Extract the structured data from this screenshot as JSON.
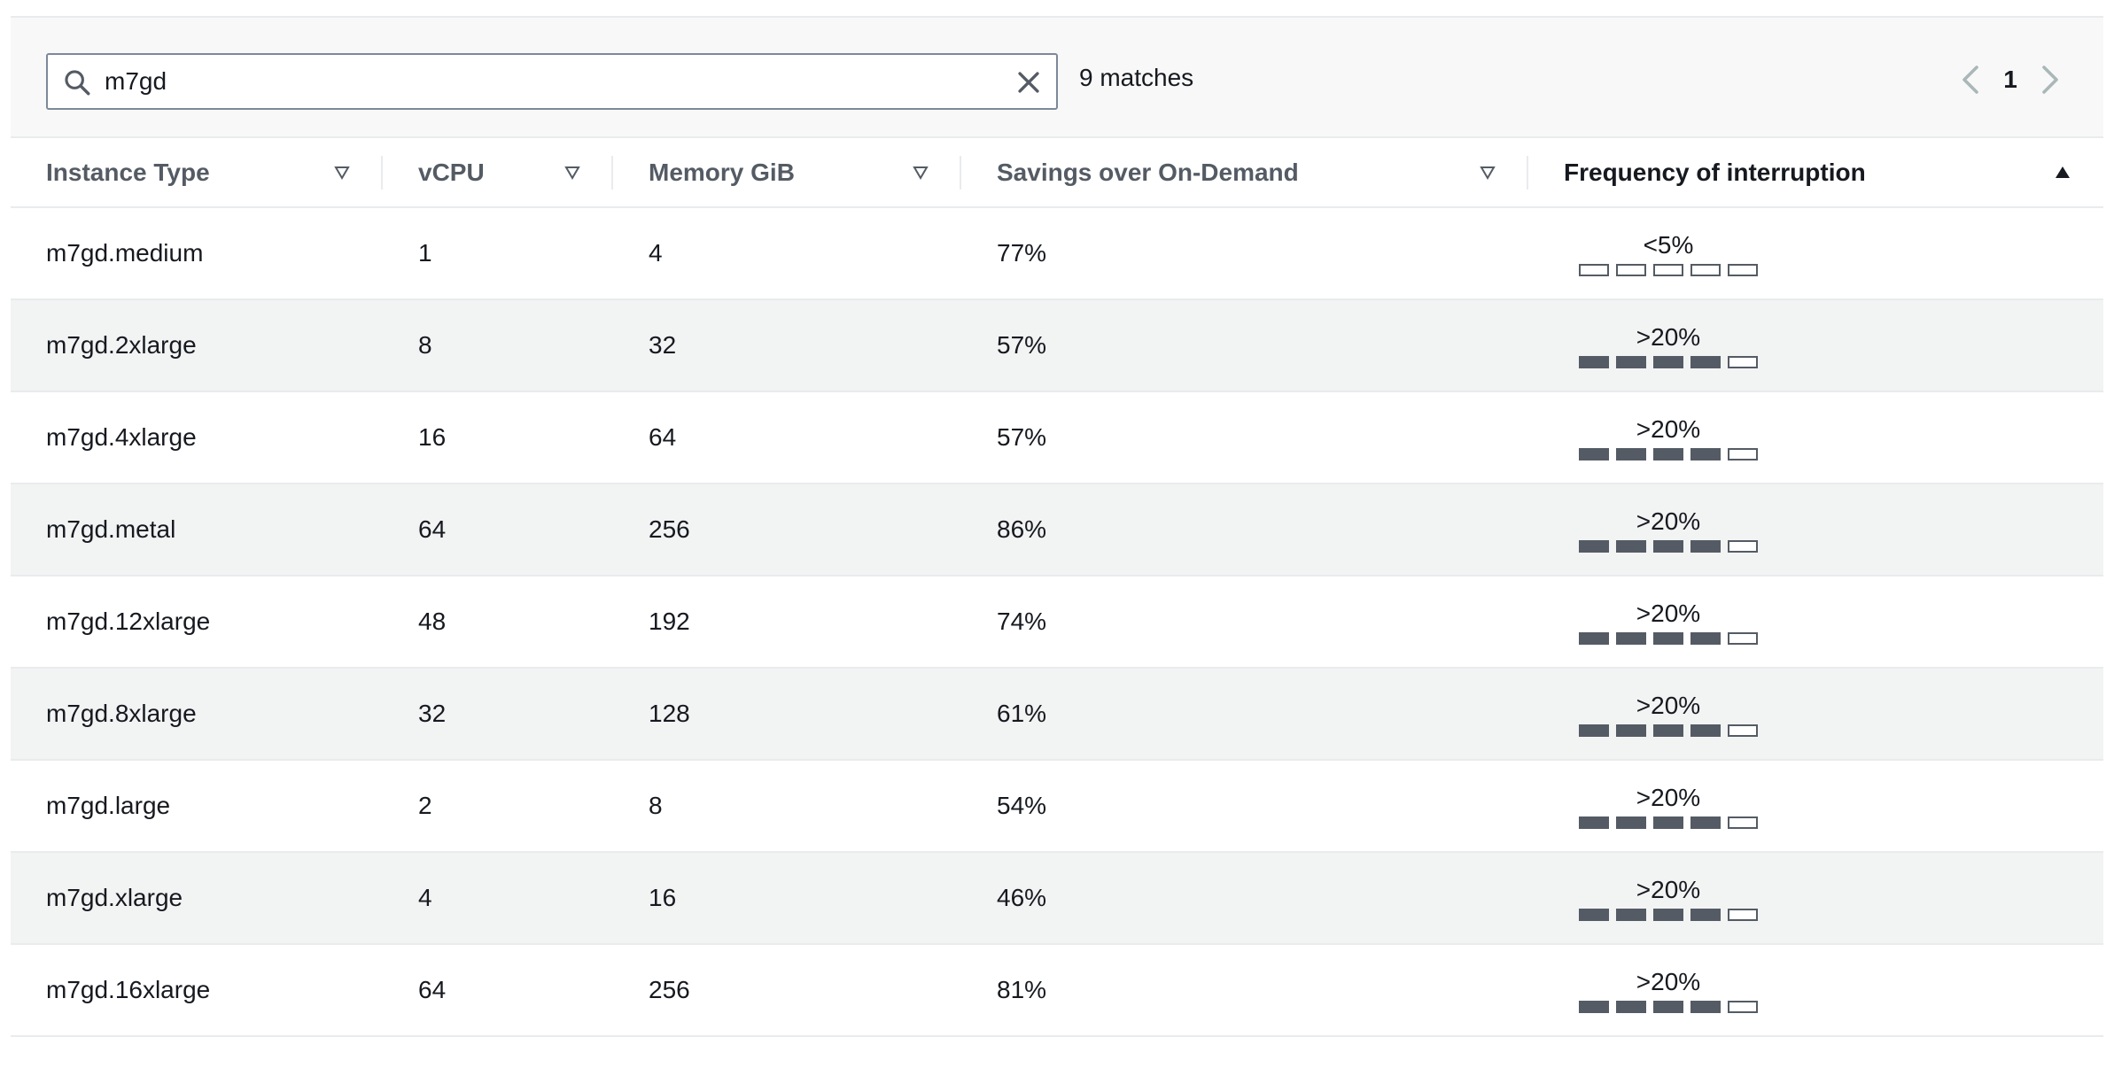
{
  "search": {
    "value": "m7gd",
    "match_count": "9 matches"
  },
  "pagination": {
    "current_page": "1"
  },
  "columns": [
    {
      "label": "Instance Type",
      "sort": "filter"
    },
    {
      "label": "vCPU",
      "sort": "filter"
    },
    {
      "label": "Memory GiB",
      "sort": "filter"
    },
    {
      "label": "Savings over On-Demand",
      "sort": "filter"
    },
    {
      "label": "Frequency of interruption",
      "sort": "ascending"
    }
  ],
  "rows": [
    {
      "instance_type": "m7gd.medium",
      "vcpu": "1",
      "memory": "4",
      "savings": "77%",
      "frequency": "<5%",
      "frequency_level": 0
    },
    {
      "instance_type": "m7gd.2xlarge",
      "vcpu": "8",
      "memory": "32",
      "savings": "57%",
      "frequency": ">20%",
      "frequency_level": 4
    },
    {
      "instance_type": "m7gd.4xlarge",
      "vcpu": "16",
      "memory": "64",
      "savings": "57%",
      "frequency": ">20%",
      "frequency_level": 4
    },
    {
      "instance_type": "m7gd.metal",
      "vcpu": "64",
      "memory": "256",
      "savings": "86%",
      "frequency": ">20%",
      "frequency_level": 4
    },
    {
      "instance_type": "m7gd.12xlarge",
      "vcpu": "48",
      "memory": "192",
      "savings": "74%",
      "frequency": ">20%",
      "frequency_level": 4
    },
    {
      "instance_type": "m7gd.8xlarge",
      "vcpu": "32",
      "memory": "128",
      "savings": "61%",
      "frequency": ">20%",
      "frequency_level": 4
    },
    {
      "instance_type": "m7gd.large",
      "vcpu": "2",
      "memory": "8",
      "savings": "54%",
      "frequency": ">20%",
      "frequency_level": 4
    },
    {
      "instance_type": "m7gd.xlarge",
      "vcpu": "4",
      "memory": "16",
      "savings": "46%",
      "frequency": ">20%",
      "frequency_level": 4
    },
    {
      "instance_type": "m7gd.16xlarge",
      "vcpu": "64",
      "memory": "256",
      "savings": "81%",
      "frequency": ">20%",
      "frequency_level": 4
    }
  ],
  "frequency_bar_total": 5,
  "icons": {
    "search": "search-icon",
    "clear": "close-icon",
    "prev": "chevron-left-icon",
    "next": "chevron-right-icon",
    "filter": "filter-triangle-icon",
    "sort_asc": "sort-ascending-icon"
  },
  "colors": {
    "bar_filled": "#545b64",
    "row_alt": "#f2f3f3",
    "toolbar_bg": "#f8f8f8"
  }
}
